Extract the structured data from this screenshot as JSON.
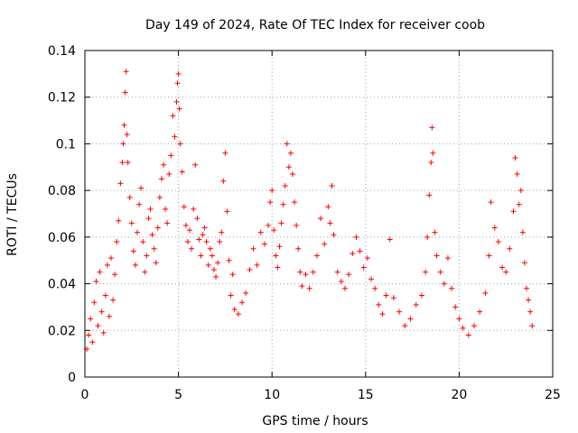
{
  "chart_data": {
    "type": "scatter",
    "title": "Day 149 of 2024, Rate Of TEC Index for receiver coob",
    "xlabel": "GPS time / hours",
    "ylabel": "ROTI / TECUs",
    "xlim": [
      0,
      25
    ],
    "ylim": [
      0,
      0.14
    ],
    "xticks": [
      {
        "value": 0,
        "label": "0"
      },
      {
        "value": 5,
        "label": "5"
      },
      {
        "value": 10,
        "label": "10"
      },
      {
        "value": 15,
        "label": "15"
      },
      {
        "value": 20,
        "label": "20"
      },
      {
        "value": 25,
        "label": "25"
      }
    ],
    "yticks": [
      {
        "value": 0,
        "label": "0"
      },
      {
        "value": 0.02,
        "label": "0.02"
      },
      {
        "value": 0.04,
        "label": "0.04"
      },
      {
        "value": 0.06,
        "label": "0.06"
      },
      {
        "value": 0.08,
        "label": "0.08"
      },
      {
        "value": 0.1,
        "label": "0.1"
      },
      {
        "value": 0.12,
        "label": "0.12"
      },
      {
        "value": 0.14,
        "label": "0.14"
      }
    ],
    "grid": true,
    "marker": "+",
    "color": "#ff0000",
    "series": [
      {
        "name": "ROTI",
        "points": [
          [
            0.1,
            0.012
          ],
          [
            0.2,
            0.018
          ],
          [
            0.3,
            0.025
          ],
          [
            0.4,
            0.015
          ],
          [
            0.5,
            0.032
          ],
          [
            0.6,
            0.041
          ],
          [
            0.7,
            0.022
          ],
          [
            0.8,
            0.045
          ],
          [
            0.9,
            0.028
          ],
          [
            1.0,
            0.019
          ],
          [
            1.1,
            0.035
          ],
          [
            1.2,
            0.048
          ],
          [
            1.3,
            0.026
          ],
          [
            1.4,
            0.051
          ],
          [
            1.5,
            0.033
          ],
          [
            1.6,
            0.044
          ],
          [
            1.7,
            0.058
          ],
          [
            1.8,
            0.067
          ],
          [
            1.9,
            0.083
          ],
          [
            2.0,
            0.092
          ],
          [
            2.05,
            0.1
          ],
          [
            2.1,
            0.108
          ],
          [
            2.15,
            0.122
          ],
          [
            2.2,
            0.131
          ],
          [
            2.25,
            0.104
          ],
          [
            2.3,
            0.092
          ],
          [
            2.4,
            0.077
          ],
          [
            2.5,
            0.066
          ],
          [
            2.6,
            0.054
          ],
          [
            2.7,
            0.048
          ],
          [
            2.8,
            0.062
          ],
          [
            2.9,
            0.074
          ],
          [
            3.0,
            0.081
          ],
          [
            3.1,
            0.058
          ],
          [
            3.2,
            0.045
          ],
          [
            3.3,
            0.052
          ],
          [
            3.4,
            0.068
          ],
          [
            3.5,
            0.072
          ],
          [
            3.6,
            0.061
          ],
          [
            3.7,
            0.055
          ],
          [
            3.8,
            0.049
          ],
          [
            3.9,
            0.064
          ],
          [
            4.0,
            0.077
          ],
          [
            4.1,
            0.085
          ],
          [
            4.2,
            0.091
          ],
          [
            4.3,
            0.072
          ],
          [
            4.4,
            0.066
          ],
          [
            4.5,
            0.087
          ],
          [
            4.6,
            0.095
          ],
          [
            4.7,
            0.112
          ],
          [
            4.8,
            0.103
          ],
          [
            4.9,
            0.118
          ],
          [
            4.95,
            0.126
          ],
          [
            5.0,
            0.13
          ],
          [
            5.05,
            0.115
          ],
          [
            5.1,
            0.1
          ],
          [
            5.2,
            0.088
          ],
          [
            5.3,
            0.073
          ],
          [
            5.4,
            0.065
          ],
          [
            5.5,
            0.058
          ],
          [
            5.6,
            0.063
          ],
          [
            5.7,
            0.055
          ],
          [
            5.8,
            0.072
          ],
          [
            5.9,
            0.091
          ],
          [
            6.0,
            0.068
          ],
          [
            6.1,
            0.059
          ],
          [
            6.2,
            0.052
          ],
          [
            6.3,
            0.061
          ],
          [
            6.4,
            0.064
          ],
          [
            6.5,
            0.058
          ],
          [
            6.6,
            0.048
          ],
          [
            6.7,
            0.055
          ],
          [
            6.8,
            0.052
          ],
          [
            6.9,
            0.046
          ],
          [
            7.0,
            0.043
          ],
          [
            7.1,
            0.049
          ],
          [
            7.2,
            0.058
          ],
          [
            7.3,
            0.062
          ],
          [
            7.4,
            0.084
          ],
          [
            7.5,
            0.096
          ],
          [
            7.6,
            0.071
          ],
          [
            7.7,
            0.05
          ],
          [
            7.8,
            0.035
          ],
          [
            7.9,
            0.044
          ],
          [
            8.0,
            0.029
          ],
          [
            8.2,
            0.027
          ],
          [
            8.4,
            0.032
          ],
          [
            8.6,
            0.036
          ],
          [
            8.8,
            0.046
          ],
          [
            9.0,
            0.055
          ],
          [
            9.2,
            0.048
          ],
          [
            9.4,
            0.062
          ],
          [
            9.6,
            0.057
          ],
          [
            9.8,
            0.065
          ],
          [
            9.9,
            0.075
          ],
          [
            10.0,
            0.08
          ],
          [
            10.1,
            0.063
          ],
          [
            10.2,
            0.052
          ],
          [
            10.3,
            0.047
          ],
          [
            10.4,
            0.056
          ],
          [
            10.5,
            0.066
          ],
          [
            10.6,
            0.074
          ],
          [
            10.7,
            0.082
          ],
          [
            10.8,
            0.1
          ],
          [
            10.9,
            0.09
          ],
          [
            11.0,
            0.096
          ],
          [
            11.1,
            0.087
          ],
          [
            11.2,
            0.075
          ],
          [
            11.3,
            0.065
          ],
          [
            11.4,
            0.055
          ],
          [
            11.5,
            0.045
          ],
          [
            11.6,
            0.039
          ],
          [
            11.8,
            0.044
          ],
          [
            12.0,
            0.038
          ],
          [
            12.2,
            0.045
          ],
          [
            12.4,
            0.052
          ],
          [
            12.6,
            0.068
          ],
          [
            12.8,
            0.057
          ],
          [
            13.0,
            0.073
          ],
          [
            13.1,
            0.066
          ],
          [
            13.2,
            0.082
          ],
          [
            13.3,
            0.061
          ],
          [
            13.5,
            0.045
          ],
          [
            13.7,
            0.041
          ],
          [
            13.9,
            0.038
          ],
          [
            14.1,
            0.044
          ],
          [
            14.3,
            0.053
          ],
          [
            14.5,
            0.06
          ],
          [
            14.7,
            0.054
          ],
          [
            14.9,
            0.047
          ],
          [
            15.1,
            0.051
          ],
          [
            15.3,
            0.042
          ],
          [
            15.5,
            0.038
          ],
          [
            15.7,
            0.031
          ],
          [
            15.9,
            0.027
          ],
          [
            16.1,
            0.035
          ],
          [
            16.3,
            0.059
          ],
          [
            16.5,
            0.034
          ],
          [
            16.8,
            0.028
          ],
          [
            17.1,
            0.022
          ],
          [
            17.4,
            0.025
          ],
          [
            17.7,
            0.031
          ],
          [
            18.0,
            0.035
          ],
          [
            18.2,
            0.045
          ],
          [
            18.3,
            0.06
          ],
          [
            18.4,
            0.078
          ],
          [
            18.5,
            0.092
          ],
          [
            18.55,
            0.107
          ],
          [
            18.6,
            0.096
          ],
          [
            18.7,
            0.062
          ],
          [
            18.8,
            0.052
          ],
          [
            19.0,
            0.045
          ],
          [
            19.2,
            0.04
          ],
          [
            19.4,
            0.051
          ],
          [
            19.6,
            0.038
          ],
          [
            19.8,
            0.03
          ],
          [
            20.0,
            0.025
          ],
          [
            20.2,
            0.021
          ],
          [
            20.5,
            0.018
          ],
          [
            20.8,
            0.022
          ],
          [
            21.1,
            0.028
          ],
          [
            21.4,
            0.036
          ],
          [
            21.6,
            0.052
          ],
          [
            21.7,
            0.075
          ],
          [
            21.9,
            0.064
          ],
          [
            22.1,
            0.058
          ],
          [
            22.3,
            0.047
          ],
          [
            22.5,
            0.045
          ],
          [
            22.7,
            0.055
          ],
          [
            22.9,
            0.071
          ],
          [
            23.0,
            0.094
          ],
          [
            23.1,
            0.087
          ],
          [
            23.2,
            0.074
          ],
          [
            23.3,
            0.08
          ],
          [
            23.4,
            0.062
          ],
          [
            23.5,
            0.049
          ],
          [
            23.6,
            0.038
          ],
          [
            23.7,
            0.033
          ],
          [
            23.8,
            0.028
          ],
          [
            23.9,
            0.022
          ]
        ]
      }
    ]
  }
}
